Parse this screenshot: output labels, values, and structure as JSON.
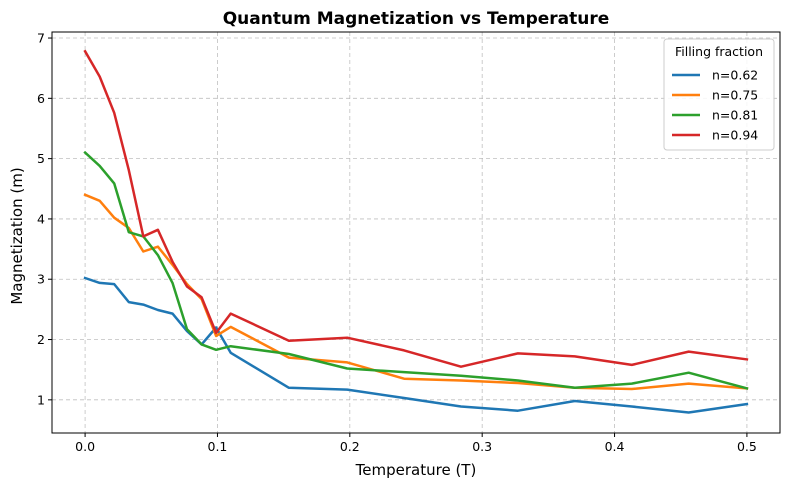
{
  "chart_data": {
    "type": "line",
    "title": "Quantum Magnetization vs Temperature",
    "xlabel": "Temperature (T)",
    "ylabel": "Magnetization (m)",
    "xlim": [
      -0.025,
      0.525
    ],
    "ylim": [
      0.45,
      7.1
    ],
    "xticks": [
      0.0,
      0.1,
      0.2,
      0.3,
      0.4,
      0.5
    ],
    "xtick_labels": [
      "0.0",
      "0.1",
      "0.2",
      "0.3",
      "0.4",
      "0.5"
    ],
    "yticks": [
      1,
      2,
      3,
      4,
      5,
      6,
      7
    ],
    "ytick_labels": [
      "1",
      "2",
      "3",
      "4",
      "5",
      "6",
      "7"
    ],
    "grid": true,
    "legend": {
      "title": "Filling fraction",
      "placement": "top-right"
    },
    "series": [
      {
        "name": "n=0.62",
        "color": "#1f77b4",
        "x": [
          0.0,
          0.011,
          0.022,
          0.033,
          0.044,
          0.055,
          0.066,
          0.077,
          0.088,
          0.099,
          0.11,
          0.154,
          0.198,
          0.241,
          0.284,
          0.327,
          0.37,
          0.413,
          0.456,
          0.5
        ],
        "y": [
          3.02,
          2.94,
          2.92,
          2.62,
          2.58,
          2.49,
          2.43,
          2.14,
          1.92,
          2.2,
          1.78,
          1.2,
          1.17,
          1.03,
          0.89,
          0.82,
          0.98,
          0.89,
          0.79,
          0.93
        ]
      },
      {
        "name": "n=0.75",
        "color": "#ff7f0e",
        "x": [
          0.0,
          0.011,
          0.022,
          0.033,
          0.044,
          0.055,
          0.066,
          0.077,
          0.088,
          0.099,
          0.11,
          0.154,
          0.198,
          0.241,
          0.284,
          0.327,
          0.37,
          0.413,
          0.456,
          0.5
        ],
        "y": [
          4.4,
          4.3,
          4.02,
          3.85,
          3.46,
          3.54,
          3.24,
          2.92,
          2.67,
          2.06,
          2.21,
          1.7,
          1.62,
          1.35,
          1.32,
          1.28,
          1.2,
          1.18,
          1.27,
          1.19
        ]
      },
      {
        "name": "n=0.81",
        "color": "#2ca02c",
        "x": [
          0.0,
          0.011,
          0.022,
          0.033,
          0.044,
          0.055,
          0.066,
          0.077,
          0.088,
          0.099,
          0.11,
          0.154,
          0.198,
          0.241,
          0.284,
          0.327,
          0.37,
          0.413,
          0.456,
          0.5
        ],
        "y": [
          5.1,
          4.88,
          4.59,
          3.78,
          3.71,
          3.4,
          2.94,
          2.17,
          1.92,
          1.83,
          1.89,
          1.76,
          1.52,
          1.46,
          1.4,
          1.32,
          1.2,
          1.27,
          1.45,
          1.19
        ]
      },
      {
        "name": "n=0.94",
        "color": "#d62728",
        "x": [
          0.0,
          0.011,
          0.022,
          0.033,
          0.044,
          0.055,
          0.066,
          0.077,
          0.088,
          0.099,
          0.11,
          0.154,
          0.198,
          0.241,
          0.284,
          0.327,
          0.37,
          0.413,
          0.456,
          0.5
        ],
        "y": [
          6.78,
          6.36,
          5.76,
          4.81,
          3.71,
          3.82,
          3.29,
          2.88,
          2.7,
          2.11,
          2.43,
          1.98,
          2.03,
          1.82,
          1.55,
          1.77,
          1.72,
          1.58,
          1.8,
          1.67
        ]
      }
    ]
  }
}
